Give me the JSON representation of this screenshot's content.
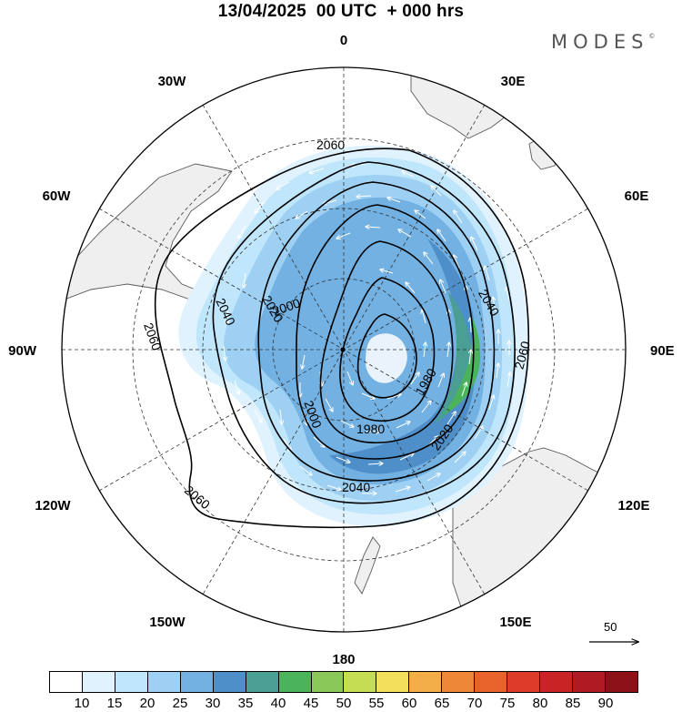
{
  "title": "13/04/2025  00 UTC  + 000 hrs",
  "brand": "MODES",
  "brand_mark": "©",
  "projection": "south-polar-stereographic",
  "longitude_labels": [
    "0",
    "30E",
    "60E",
    "90E",
    "120E",
    "150E",
    "180",
    "150W",
    "120W",
    "90W",
    "60W",
    "30W"
  ],
  "contour_labels": [
    "2060",
    "2060",
    "2060",
    "2060",
    "2040",
    "2040",
    "2040",
    "2020",
    "2020",
    "2000",
    "2000",
    "1980",
    "1980"
  ],
  "wind_reference": {
    "value": "50"
  },
  "colorbar": {
    "labels": [
      "10",
      "15",
      "20",
      "25",
      "30",
      "35",
      "40",
      "45",
      "50",
      "55",
      "60",
      "65",
      "70",
      "75",
      "80",
      "85",
      "90"
    ],
    "colors": [
      "#ffffff",
      "#dff2fd",
      "#bfe6fb",
      "#9dd0f2",
      "#72b1e2",
      "#4f8fc9",
      "#4a9e93",
      "#4cb35d",
      "#8ac85a",
      "#c5dd52",
      "#f4df5c",
      "#f4ae48",
      "#ee8837",
      "#e8622c",
      "#de3c2a",
      "#c92326",
      "#af1a23",
      "#8c1218"
    ]
  },
  "colors": {
    "land": "#efefef",
    "coast": "#5a5a5a",
    "contour": "#000000",
    "graticule": "#333333"
  }
}
